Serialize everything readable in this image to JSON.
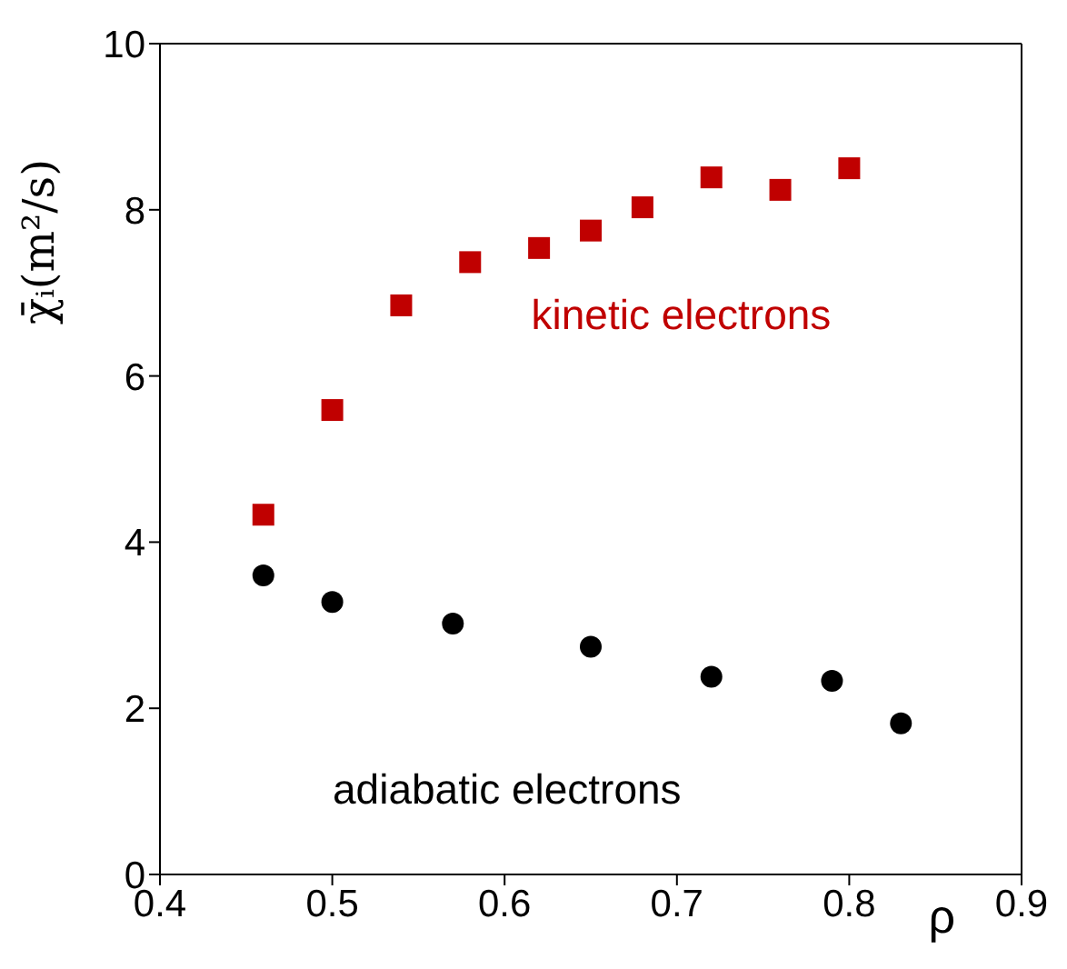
{
  "chart_data": {
    "type": "scatter",
    "xlabel": "ρ",
    "ylabel": "χ̄ᵢ(m²/s)",
    "xlim": [
      0.4,
      0.9
    ],
    "xticks": [
      0.4,
      0.5,
      0.6,
      0.7,
      0.8,
      0.9
    ],
    "ylim": [
      0,
      10
    ],
    "yticks": [
      0,
      2,
      4,
      6,
      8,
      10
    ],
    "series": [
      {
        "name": "kinetic electrons",
        "color": "#c00000",
        "marker": "square",
        "x": [
          0.46,
          0.5,
          0.54,
          0.58,
          0.62,
          0.65,
          0.68,
          0.72,
          0.76,
          0.8
        ],
        "values": [
          4.33,
          5.59,
          6.85,
          7.37,
          7.54,
          7.75,
          8.03,
          8.39,
          8.24,
          8.5
        ]
      },
      {
        "name": "adiabatic electrons",
        "color": "#000000",
        "marker": "circle",
        "x": [
          0.46,
          0.5,
          0.57,
          0.65,
          0.72,
          0.79,
          0.83
        ],
        "values": [
          3.6,
          3.28,
          3.02,
          2.74,
          2.38,
          2.33,
          1.82
        ]
      }
    ]
  }
}
